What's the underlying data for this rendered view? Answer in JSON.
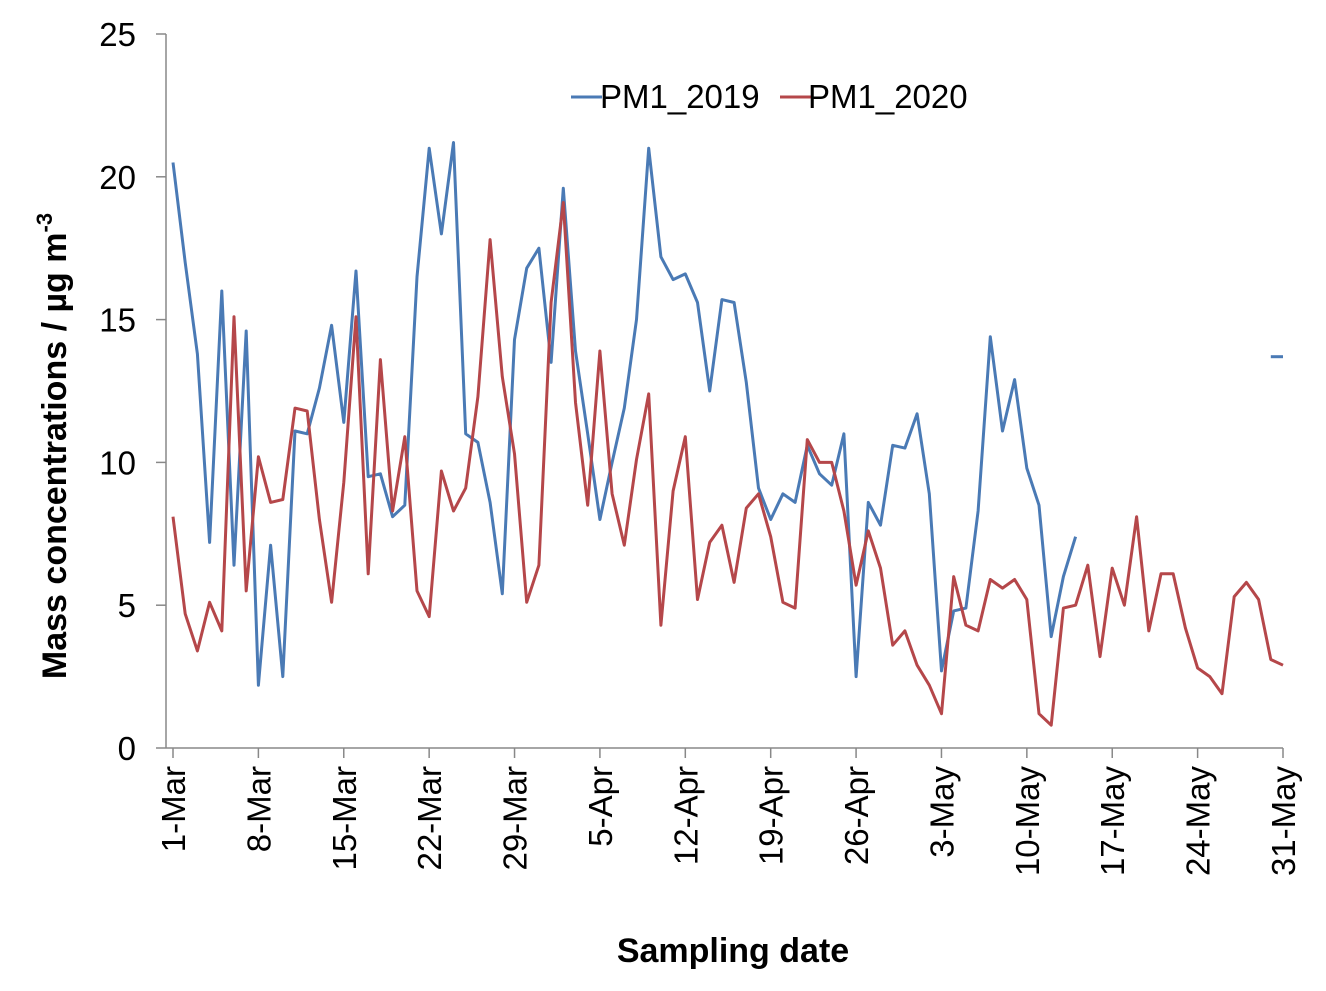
{
  "chart_data": {
    "type": "line",
    "title": "",
    "xlabel": "Sampling date",
    "ylabel": "Mass concentrations / µg m",
    "ylabel_sup": "-3",
    "ylim": [
      0,
      25
    ],
    "yticks": [
      0,
      5,
      10,
      15,
      20,
      25
    ],
    "x_start": "1-Mar",
    "x_end": "31-May",
    "xticks": [
      {
        "day": 1,
        "label": "1-Mar"
      },
      {
        "day": 8,
        "label": "8-Mar"
      },
      {
        "day": 15,
        "label": "15-Mar"
      },
      {
        "day": 22,
        "label": "22-Mar"
      },
      {
        "day": 29,
        "label": "29-Mar"
      },
      {
        "day": 36,
        "label": "5-Apr"
      },
      {
        "day": 43,
        "label": "12-Apr"
      },
      {
        "day": 50,
        "label": "19-Apr"
      },
      {
        "day": 57,
        "label": "26-Apr"
      },
      {
        "day": 64,
        "label": "3-May"
      },
      {
        "day": 71,
        "label": "10-May"
      },
      {
        "day": 78,
        "label": "17-May"
      },
      {
        "day": 85,
        "label": "24-May"
      },
      {
        "day": 92,
        "label": "31-May"
      }
    ],
    "legend_position": "top-center",
    "grid": false,
    "series": [
      {
        "name": "PM1_2019",
        "color": "#4a7ab5",
        "segments": [
          [
            [
              1,
              20.5
            ],
            [
              2,
              17.0
            ],
            [
              3,
              13.8
            ],
            [
              4,
              7.2
            ],
            [
              5,
              16.0
            ],
            [
              6,
              6.4
            ],
            [
              7,
              14.6
            ],
            [
              8,
              2.2
            ],
            [
              9,
              7.1
            ],
            [
              10,
              2.5
            ],
            [
              11,
              11.1
            ],
            [
              12,
              11.0
            ],
            [
              13,
              12.6
            ],
            [
              14,
              14.8
            ],
            [
              15,
              11.4
            ],
            [
              16,
              16.7
            ],
            [
              17,
              9.5
            ],
            [
              18,
              9.6
            ],
            [
              19,
              8.1
            ],
            [
              20,
              8.5
            ],
            [
              21,
              16.5
            ],
            [
              22,
              21.0
            ],
            [
              23,
              18.0
            ],
            [
              24,
              21.2
            ],
            [
              25,
              11.0
            ],
            [
              26,
              10.7
            ],
            [
              27,
              8.6
            ],
            [
              28,
              5.4
            ],
            [
              29,
              14.3
            ],
            [
              30,
              16.8
            ],
            [
              31,
              17.5
            ],
            [
              32,
              13.5
            ],
            [
              33,
              19.6
            ],
            [
              34,
              13.9
            ],
            [
              35,
              11.0
            ],
            [
              36,
              8.0
            ],
            [
              37,
              10.0
            ],
            [
              38,
              11.9
            ],
            [
              39,
              15.0
            ],
            [
              40,
              21.0
            ],
            [
              41,
              17.2
            ],
            [
              42,
              16.4
            ],
            [
              43,
              16.6
            ],
            [
              44,
              15.6
            ],
            [
              45,
              12.5
            ],
            [
              46,
              15.7
            ],
            [
              47,
              15.6
            ],
            [
              48,
              12.8
            ],
            [
              49,
              9.1
            ],
            [
              50,
              8.0
            ],
            [
              51,
              8.9
            ],
            [
              52,
              8.6
            ],
            [
              53,
              10.6
            ],
            [
              54,
              9.6
            ],
            [
              55,
              9.2
            ],
            [
              56,
              11.0
            ],
            [
              57,
              2.5
            ],
            [
              58,
              8.6
            ],
            [
              59,
              7.8
            ],
            [
              60,
              10.6
            ],
            [
              61,
              10.5
            ],
            [
              62,
              11.7
            ],
            [
              63,
              8.9
            ],
            [
              64,
              2.7
            ],
            [
              65,
              4.8
            ],
            [
              66,
              4.9
            ],
            [
              67,
              8.3
            ],
            [
              68,
              14.4
            ],
            [
              69,
              11.1
            ],
            [
              70,
              12.9
            ],
            [
              71,
              9.8
            ],
            [
              72,
              8.5
            ],
            [
              73,
              3.9
            ],
            [
              74,
              6.0
            ],
            [
              75,
              7.4
            ]
          ],
          [
            [
              91,
              13.7
            ],
            [
              92,
              13.7
            ]
          ]
        ]
      },
      {
        "name": "PM1_2020",
        "color": "#b5474a",
        "segments": [
          [
            [
              1,
              8.1
            ],
            [
              2,
              4.7
            ],
            [
              3,
              3.4
            ],
            [
              4,
              5.1
            ],
            [
              5,
              4.1
            ],
            [
              6,
              15.1
            ],
            [
              7,
              5.5
            ],
            [
              8,
              10.2
            ],
            [
              9,
              8.6
            ],
            [
              10,
              8.7
            ],
            [
              11,
              11.9
            ],
            [
              12,
              11.8
            ],
            [
              13,
              8.0
            ],
            [
              14,
              5.1
            ],
            [
              15,
              9.3
            ],
            [
              16,
              15.1
            ],
            [
              17,
              6.1
            ],
            [
              18,
              13.6
            ],
            [
              19,
              8.3
            ],
            [
              20,
              10.9
            ],
            [
              21,
              5.5
            ],
            [
              22,
              4.6
            ],
            [
              23,
              9.7
            ],
            [
              24,
              8.3
            ],
            [
              25,
              9.1
            ],
            [
              26,
              12.3
            ],
            [
              27,
              17.8
            ],
            [
              28,
              13.0
            ],
            [
              29,
              10.3
            ],
            [
              30,
              5.1
            ],
            [
              31,
              6.4
            ],
            [
              32,
              15.6
            ],
            [
              33,
              19.1
            ],
            [
              34,
              12.1
            ],
            [
              35,
              8.5
            ],
            [
              36,
              13.9
            ],
            [
              37,
              8.9
            ],
            [
              38,
              7.1
            ],
            [
              39,
              10.1
            ],
            [
              40,
              12.4
            ],
            [
              41,
              4.3
            ],
            [
              42,
              9.0
            ],
            [
              43,
              10.9
            ],
            [
              44,
              5.2
            ],
            [
              45,
              7.2
            ],
            [
              46,
              7.8
            ],
            [
              47,
              5.8
            ],
            [
              48,
              8.4
            ],
            [
              49,
              8.9
            ],
            [
              50,
              7.4
            ],
            [
              51,
              5.1
            ],
            [
              52,
              4.9
            ],
            [
              53,
              10.8
            ],
            [
              54,
              10.0
            ],
            [
              55,
              10.0
            ],
            [
              56,
              8.3
            ],
            [
              57,
              5.7
            ],
            [
              58,
              7.6
            ],
            [
              59,
              6.3
            ],
            [
              60,
              3.6
            ],
            [
              61,
              4.1
            ],
            [
              62,
              2.9
            ],
            [
              63,
              2.2
            ],
            [
              64,
              1.2
            ],
            [
              65,
              6.0
            ],
            [
              66,
              4.3
            ],
            [
              67,
              4.1
            ],
            [
              68,
              5.9
            ],
            [
              69,
              5.6
            ],
            [
              70,
              5.9
            ],
            [
              71,
              5.2
            ],
            [
              72,
              1.2
            ],
            [
              73,
              0.8
            ],
            [
              74,
              4.9
            ],
            [
              75,
              5.0
            ],
            [
              76,
              6.4
            ],
            [
              77,
              3.2
            ],
            [
              78,
              6.3
            ],
            [
              79,
              5.0
            ],
            [
              80,
              8.1
            ],
            [
              81,
              4.1
            ],
            [
              82,
              6.1
            ],
            [
              83,
              6.1
            ],
            [
              84,
              4.2
            ],
            [
              85,
              2.8
            ],
            [
              86,
              2.5
            ],
            [
              87,
              1.9
            ],
            [
              88,
              5.3
            ],
            [
              89,
              5.8
            ],
            [
              90,
              5.2
            ],
            [
              91,
              3.1
            ],
            [
              92,
              2.9
            ]
          ]
        ]
      }
    ]
  }
}
